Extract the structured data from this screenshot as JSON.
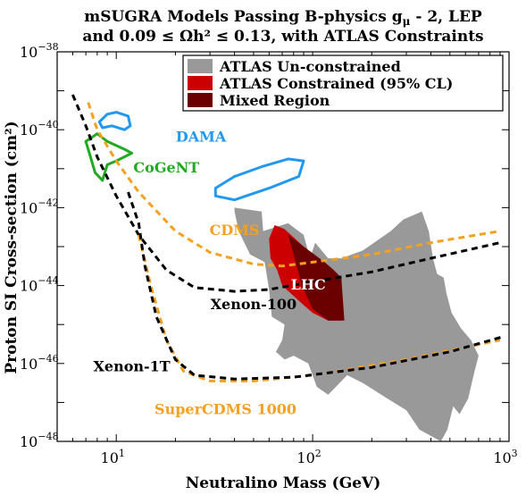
{
  "chart_data": {
    "type": "area",
    "title_line1": "mSUGRA Models Passing B-physics g",
    "title_line1_sub": "μ",
    "title_line1_rest": " - 2, LEP",
    "title_line2": "and 0.09 ≤ Ωh² ≤ 0.13, with ATLAS Constraints",
    "xlabel": "Neutralino Mass (GeV)",
    "ylabel": "Proton SI Cross-section (cm²)",
    "x_scale": "log",
    "y_scale": "log",
    "xlim": [
      5,
      1000
    ],
    "ylim": [
      1e-48,
      1e-38
    ],
    "x_ticks": [
      {
        "value": 10,
        "base": "10",
        "exp": "1"
      },
      {
        "value": 100,
        "base": "10",
        "exp": "2"
      },
      {
        "value": 1000,
        "base": "10",
        "exp": "3"
      }
    ],
    "y_ticks": [
      {
        "value": 1e-38,
        "base": "10",
        "exp": "−38"
      },
      {
        "value": 1e-40,
        "base": "10",
        "exp": "−40"
      },
      {
        "value": 1e-42,
        "base": "10",
        "exp": "−42"
      },
      {
        "value": 1e-44,
        "base": "10",
        "exp": "−44"
      },
      {
        "value": 1e-46,
        "base": "10",
        "exp": "−46"
      },
      {
        "value": 1e-48,
        "base": "10",
        "exp": "−48"
      }
    ],
    "legend": {
      "placement": "top-right",
      "entries": [
        {
          "label": "ATLAS Un-constrained",
          "color": "#999999"
        },
        {
          "label": "ATLAS Constrained (95% CL)",
          "color": "#cc0000"
        },
        {
          "label": "Mixed Region",
          "color": "#6a0000"
        }
      ]
    },
    "regions": [
      {
        "id": "atlas-unconstrained",
        "color": "#999999",
        "points": [
          [
            40,
            -42
          ],
          [
            55,
            -42.1
          ],
          [
            56,
            -42.6
          ],
          [
            75,
            -42.4
          ],
          [
            90,
            -42.7
          ],
          [
            97,
            -43.3
          ],
          [
            103,
            -42.9
          ],
          [
            120,
            -43.3
          ],
          [
            140,
            -43.3
          ],
          [
            180,
            -43.1
          ],
          [
            250,
            -42.6
          ],
          [
            290,
            -42.3
          ],
          [
            360,
            -42.1
          ],
          [
            390,
            -42.6
          ],
          [
            410,
            -43.3
          ],
          [
            430,
            -43.7
          ],
          [
            465,
            -43.8
          ],
          [
            480,
            -44.2
          ],
          [
            510,
            -44.7
          ],
          [
            570,
            -45.1
          ],
          [
            640,
            -45.4
          ],
          [
            700,
            -45.8
          ],
          [
            660,
            -46.3
          ],
          [
            620,
            -46.9
          ],
          [
            560,
            -47.3
          ],
          [
            520,
            -47.1
          ],
          [
            485,
            -47.7
          ],
          [
            450,
            -48
          ],
          [
            350,
            -47.7
          ],
          [
            300,
            -47.2
          ],
          [
            240,
            -46.9
          ],
          [
            180,
            -46.5
          ],
          [
            150,
            -46.3
          ],
          [
            120,
            -46.8
          ],
          [
            105,
            -46.6
          ],
          [
            95,
            -46
          ],
          [
            80,
            -45.8
          ],
          [
            72,
            -45.9
          ],
          [
            65,
            -45.7
          ],
          [
            70,
            -45.4
          ],
          [
            72,
            -45
          ],
          [
            62,
            -44.8
          ],
          [
            60,
            -44.1
          ],
          [
            57,
            -43.4
          ],
          [
            48,
            -43.2
          ],
          [
            42,
            -42.6
          ],
          [
            40,
            -42.1
          ]
        ]
      },
      {
        "id": "atlas-constrained",
        "color": "#cc0000",
        "points": [
          [
            66,
            -43.6
          ],
          [
            61,
            -43.3
          ],
          [
            60,
            -42.8
          ],
          [
            64,
            -42.45
          ],
          [
            72,
            -42.55
          ],
          [
            90,
            -43
          ],
          [
            115,
            -43.4
          ],
          [
            128,
            -43.6
          ],
          [
            140,
            -43.8
          ],
          [
            140,
            -44.9
          ],
          [
            120,
            -44.9
          ],
          [
            100,
            -44.7
          ],
          [
            90,
            -44.5
          ],
          [
            70,
            -44
          ]
        ]
      },
      {
        "id": "mixed-region",
        "color": "#6a0000",
        "points": [
          [
            75,
            -42.7
          ],
          [
            90,
            -43
          ],
          [
            115,
            -43.4
          ],
          [
            128,
            -43.6
          ],
          [
            140,
            -43.8
          ],
          [
            145,
            -44.9
          ],
          [
            120,
            -44.9
          ],
          [
            100,
            -44.6
          ],
          [
            88,
            -44
          ],
          [
            85,
            -43.7
          ]
        ]
      }
    ],
    "series": [
      {
        "id": "dama-upper",
        "color": "#2299ee",
        "dash": false,
        "closed": true,
        "points": [
          [
            8.2,
            -39.8
          ],
          [
            9,
            -39.6
          ],
          [
            10,
            -39.55
          ],
          [
            11.5,
            -39.65
          ],
          [
            11.8,
            -39.9
          ],
          [
            11,
            -40
          ],
          [
            9.5,
            -39.9
          ],
          [
            8.5,
            -39.95
          ]
        ]
      },
      {
        "id": "dama-lower",
        "color": "#2299ee",
        "dash": false,
        "closed": true,
        "points": [
          [
            32,
            -41.5
          ],
          [
            40,
            -41.2
          ],
          [
            55,
            -40.95
          ],
          [
            75,
            -40.75
          ],
          [
            90,
            -40.8
          ],
          [
            85,
            -41.2
          ],
          [
            60,
            -41.5
          ],
          [
            40,
            -41.8
          ],
          [
            32,
            -41.7
          ]
        ]
      },
      {
        "id": "cogent",
        "color": "#22aa22",
        "dash": false,
        "closed": true,
        "points": [
          [
            7,
            -40.3
          ],
          [
            8,
            -40.1
          ],
          [
            9,
            -40.3
          ],
          [
            11,
            -40.5
          ],
          [
            12,
            -40.6
          ],
          [
            10,
            -40.8
          ],
          [
            9,
            -40.9
          ],
          [
            8.5,
            -41.3
          ],
          [
            7.8,
            -41.1
          ],
          [
            7.3,
            -40.6
          ]
        ]
      },
      {
        "id": "cdms",
        "color": "#f4a020",
        "dash": true,
        "closed": false,
        "points": [
          [
            7.2,
            -39.3
          ],
          [
            8,
            -40
          ],
          [
            10,
            -40.8
          ],
          [
            13,
            -41.6
          ],
          [
            20,
            -42.6
          ],
          [
            30,
            -43.15
          ],
          [
            50,
            -43.45
          ],
          [
            70,
            -43.5
          ],
          [
            100,
            -43.4
          ],
          [
            200,
            -43.2
          ],
          [
            400,
            -42.9
          ],
          [
            900,
            -42.6
          ]
        ]
      },
      {
        "id": "xenon-100",
        "color": "#000000",
        "dash": true,
        "closed": false,
        "points": [
          [
            6,
            -39.1
          ],
          [
            7,
            -39.9
          ],
          [
            8,
            -40.7
          ],
          [
            10,
            -41.7
          ],
          [
            13,
            -42.7
          ],
          [
            18,
            -43.6
          ],
          [
            25,
            -44.05
          ],
          [
            40,
            -44.15
          ],
          [
            60,
            -44.1
          ],
          [
            100,
            -43.9
          ],
          [
            200,
            -43.65
          ],
          [
            400,
            -43.3
          ],
          [
            900,
            -42.9
          ]
        ]
      },
      {
        "id": "supercdms-1000",
        "color": "#f4a020",
        "dash": true,
        "closed": false,
        "points": [
          [
            13,
            -42.7
          ],
          [
            15,
            -44
          ],
          [
            18,
            -45.4
          ],
          [
            22,
            -46.2
          ],
          [
            30,
            -46.45
          ],
          [
            50,
            -46.45
          ],
          [
            100,
            -46.3
          ],
          [
            300,
            -45.9
          ],
          [
            900,
            -45.4
          ]
        ]
      },
      {
        "id": "xenon-1t",
        "color": "#000000",
        "dash": true,
        "closed": false,
        "points": [
          [
            11.5,
            -41.6
          ],
          [
            13,
            -42.4
          ],
          [
            14,
            -43.5
          ],
          [
            16,
            -44.8
          ],
          [
            20,
            -45.9
          ],
          [
            25,
            -46.3
          ],
          [
            40,
            -46.4
          ],
          [
            80,
            -46.35
          ],
          [
            200,
            -46.1
          ],
          [
            500,
            -45.7
          ],
          [
            950,
            -45.3
          ]
        ]
      }
    ],
    "annotations": [
      {
        "text": "DAMA",
        "color": "#2299ee",
        "x": 27,
        "y": -40.3
      },
      {
        "text": "CoGeNT",
        "color": "#22aa22",
        "x": 18,
        "y": -41.1
      },
      {
        "text": "CDMS",
        "color": "#f4a020",
        "x": 40,
        "y": -42.7
      },
      {
        "text": "LHC",
        "color": "#ffffff",
        "x": 95,
        "y": -44.1
      },
      {
        "text": "Xenon-100",
        "color": "#000000",
        "x": 50,
        "y": -44.6
      },
      {
        "text": "Xenon-1T",
        "color": "#000000",
        "x": 12,
        "y": -46.2
      },
      {
        "text": "SuperCDMS 1000",
        "color": "#f4a020",
        "x": 36,
        "y": -47.3
      }
    ]
  }
}
